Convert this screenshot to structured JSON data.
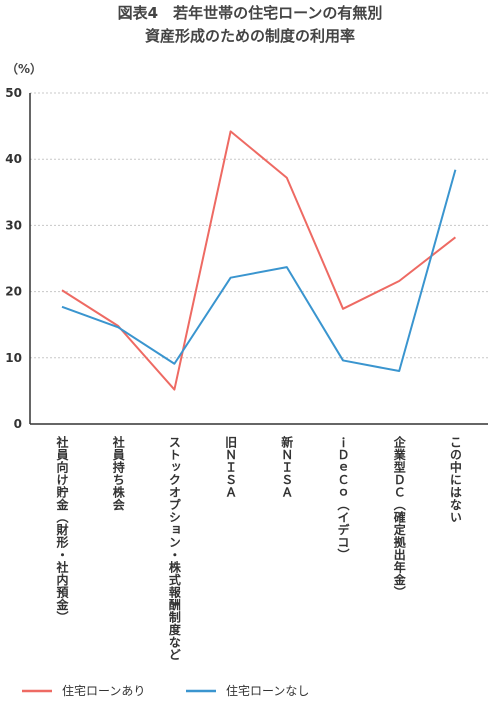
{
  "chart_data": {
    "type": "line",
    "title": "図表4　若年世帯の住宅ローンの有無別",
    "subtitle": "資産形成のための制度の利用率",
    "unit": "（%）",
    "categories": [
      "社員向け貯金（財形・社内預金）",
      "社員持ち株会",
      "ストックオプション・株式報酬制度など",
      "旧ＮＩＳＡ",
      "新ＮＩＳＡ",
      "ｉＤｅＣｏ（イデコ）",
      "企業型ＤＣ（確定拠出年金）",
      "この中にはない"
    ],
    "series": [
      {
        "name": "住宅ローンあり",
        "color": "#ee6a63",
        "values": [
          20.2,
          14.8,
          5.2,
          44.2,
          37.2,
          17.4,
          21.6,
          28.2
        ]
      },
      {
        "name": "住宅ローンなし",
        "color": "#3a95cf",
        "values": [
          17.7,
          14.6,
          9.1,
          22.1,
          23.7,
          9.6,
          8.0,
          38.4
        ]
      }
    ],
    "ylim": [
      0,
      50
    ],
    "yticks": [
      0,
      10,
      20,
      30,
      40,
      50
    ],
    "grid": true,
    "legend_position": "bottom-left"
  }
}
